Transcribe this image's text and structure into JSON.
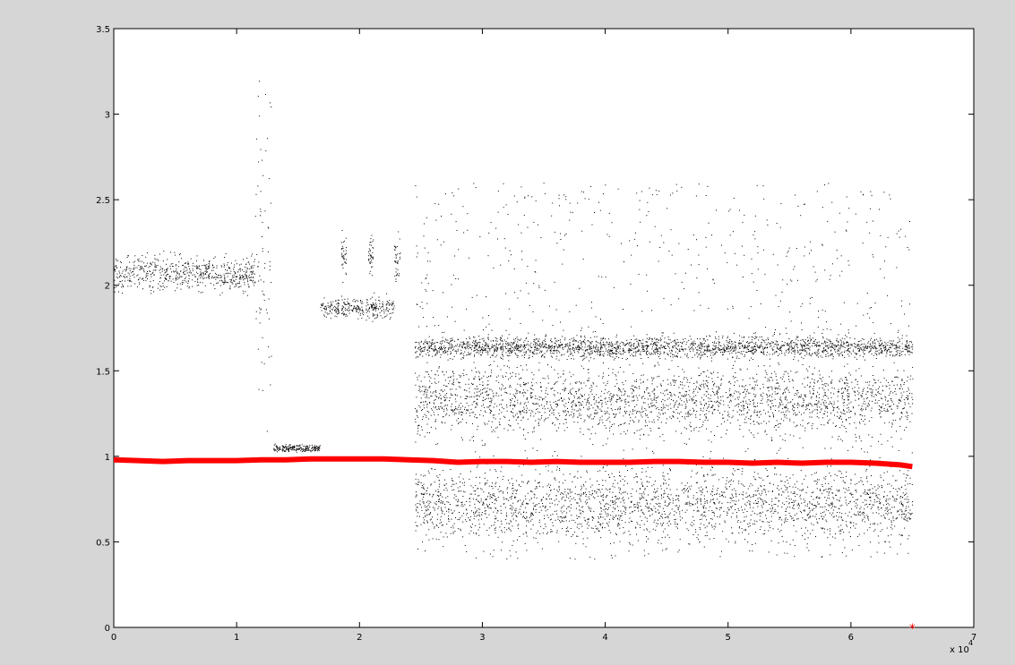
{
  "chart_data": {
    "type": "scatter",
    "title": "",
    "xlabel": "",
    "ylabel": "",
    "x_exponent_label": "x 10",
    "x_exponent": "4",
    "xlim": [
      0,
      70000
    ],
    "ylim": [
      0,
      3.5
    ],
    "x_ticks": [
      0,
      10000,
      20000,
      30000,
      40000,
      50000,
      60000,
      70000
    ],
    "x_tick_labels": [
      "0",
      "1",
      "2",
      "3",
      "4",
      "5",
      "6",
      "7"
    ],
    "y_ticks": [
      0,
      0.5,
      1,
      1.5,
      2,
      2.5,
      3,
      3.5
    ],
    "y_tick_labels": [
      "0",
      "0.5",
      "1",
      "1.5",
      "2",
      "2.5",
      "3",
      "3.5"
    ],
    "grid": false,
    "series": [
      {
        "style": "black dots",
        "color": "#000000",
        "clusters": [
          {
            "x_range": [
              0,
              11500
            ],
            "y_center": 2.07,
            "y_spread": 0.05
          },
          {
            "x_range": [
              11500,
              12800
            ],
            "y_center": 2.2,
            "y_spread": 0.45
          },
          {
            "x_range": [
              13000,
              16800
            ],
            "y_center": 1.05,
            "y_spread": 0.01
          },
          {
            "x_range": [
              16800,
              18300
            ],
            "y_center": 1.87,
            "y_spread": 0.03
          },
          {
            "x_range": [
              18500,
              20300
            ],
            "y_center": 1.87,
            "y_spread": 0.03
          },
          {
            "x_range": [
              20500,
              22800
            ],
            "y_center": 1.87,
            "y_spread": 0.03
          },
          {
            "x_range": [
              18500,
              18900
            ],
            "y_center": 2.17,
            "y_spread": 0.06
          },
          {
            "x_range": [
              20700,
              21100
            ],
            "y_center": 2.17,
            "y_spread": 0.06
          },
          {
            "x_range": [
              22800,
              23300
            ],
            "y_center": 2.17,
            "y_spread": 0.06
          },
          {
            "x_range": [
              24500,
              65000
            ],
            "y_center": 1.64,
            "y_spread": 0.03
          },
          {
            "x_range": [
              24500,
              65000
            ],
            "y_center": 1.33,
            "y_spread": 0.09
          },
          {
            "x_range": [
              24500,
              65000
            ],
            "y_center": 0.72,
            "y_spread": 0.1
          },
          {
            "x_range": [
              24500,
              65000
            ],
            "y_center": 1.5,
            "y_spread": 1.1
          }
        ]
      },
      {
        "style": "red line",
        "color": "#ff0000",
        "points": [
          [
            0,
            0.98
          ],
          [
            2000,
            0.975
          ],
          [
            4000,
            0.97
          ],
          [
            6000,
            0.975
          ],
          [
            8000,
            0.975
          ],
          [
            10000,
            0.975
          ],
          [
            12000,
            0.98
          ],
          [
            14000,
            0.98
          ],
          [
            16000,
            0.985
          ],
          [
            18000,
            0.985
          ],
          [
            20000,
            0.985
          ],
          [
            22000,
            0.985
          ],
          [
            24000,
            0.98
          ],
          [
            26000,
            0.975
          ],
          [
            28000,
            0.965
          ],
          [
            30000,
            0.97
          ],
          [
            32000,
            0.97
          ],
          [
            34000,
            0.965
          ],
          [
            36000,
            0.97
          ],
          [
            38000,
            0.965
          ],
          [
            40000,
            0.965
          ],
          [
            42000,
            0.965
          ],
          [
            44000,
            0.97
          ],
          [
            46000,
            0.97
          ],
          [
            48000,
            0.965
          ],
          [
            50000,
            0.965
          ],
          [
            52000,
            0.96
          ],
          [
            54000,
            0.965
          ],
          [
            56000,
            0.96
          ],
          [
            58000,
            0.965
          ],
          [
            60000,
            0.965
          ],
          [
            62000,
            0.96
          ],
          [
            64000,
            0.95
          ],
          [
            65000,
            0.94
          ]
        ]
      },
      {
        "style": "red asterisk",
        "color": "#ff0000",
        "points": [
          [
            65000,
            0
          ]
        ]
      }
    ]
  }
}
